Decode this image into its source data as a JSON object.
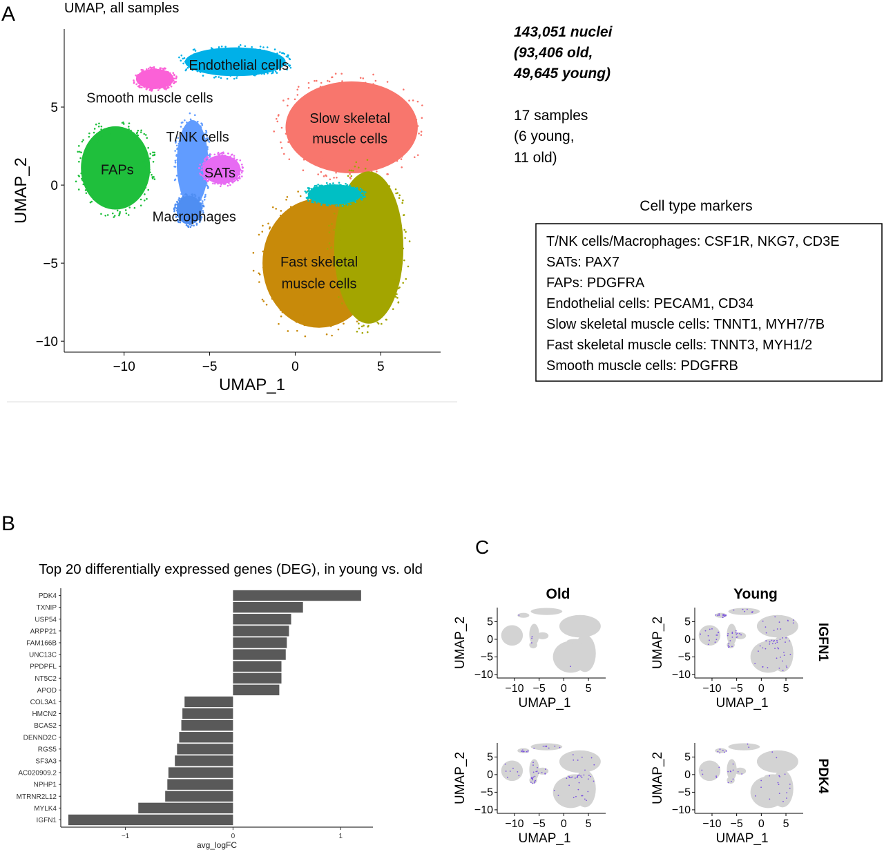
{
  "panels": {
    "A": {
      "letter": "A",
      "title": "UMAP, all samples",
      "nuclei_text": [
        "143,051 nuclei",
        "(93,406 old,",
        "49,645 young)"
      ],
      "samples_text": [
        "17 samples",
        "(6 young,",
        "11 old)"
      ],
      "markers_title": "Cell type markers",
      "markers": [
        "T/NK cells/Macrophages: CSF1R, NKG7, CD3E",
        "SATs: PAX7",
        "FAPs: PDGFRA",
        "Endothelial cells: PECAM1, CD34",
        "Slow skeletal muscle cells: TNNT1, MYH7/7B",
        "Fast skeletal muscle cells: TNNT3, MYH1/2",
        "Smooth muscle cells: PDGFRB"
      ]
    },
    "B": {
      "letter": "B"
    },
    "C": {
      "letter": "C",
      "col_labels": [
        "Old",
        "Young"
      ],
      "row_labels": [
        "IGFN1",
        "PDK4"
      ]
    }
  },
  "chart_data": [
    {
      "type": "scatter",
      "id": "umap-all",
      "xlabel": "UMAP_1",
      "ylabel": "UMAP_2",
      "xlim": [
        -13.5,
        8.5
      ],
      "ylim": [
        -10.7,
        10
      ],
      "xticks": [
        -10,
        -5,
        0,
        5
      ],
      "yticks": [
        -10,
        -5,
        0,
        5
      ],
      "tick_labels_x": [
        "−10",
        "−5",
        "0",
        "5"
      ],
      "tick_labels_y": [
        "−10",
        "−5",
        "0",
        "5"
      ],
      "grid": false,
      "clusters": [
        {
          "label": "Slow skeletal muscle cells",
          "color": "#f8766d",
          "center": [
            3.3,
            3.7
          ],
          "radius": [
            4.2,
            3.2
          ]
        },
        {
          "label": "Fast skeletal muscle cells",
          "color": "#c88a0a",
          "center": [
            1.4,
            -5.0
          ],
          "radius": [
            3.6,
            4.5
          ]
        },
        {
          "label": "",
          "color": "#a3a500",
          "center": [
            4.3,
            -4.0
          ],
          "radius": [
            2.2,
            5.3
          ]
        },
        {
          "label": "",
          "color": "#00bfc4",
          "center": [
            2.3,
            -0.6
          ],
          "radius": [
            1.7,
            0.7
          ]
        },
        {
          "label": "Endothelial cells",
          "color": "#00b0e8",
          "center": [
            -3.5,
            7.9
          ],
          "radius": [
            3.2,
            1.0
          ]
        },
        {
          "label": "Smooth muscle cells",
          "color": "#fb61d7",
          "center": [
            -8.2,
            6.8
          ],
          "radius": [
            1.2,
            0.7
          ]
        },
        {
          "label": "T/NK cells",
          "color": "#619cff",
          "center": [
            -6.0,
            1.4
          ],
          "radius": [
            1.0,
            3.0
          ]
        },
        {
          "label": "SATs",
          "color": "#e76bf3",
          "center": [
            -4.3,
            1.0
          ],
          "radius": [
            1.2,
            1.0
          ]
        },
        {
          "label": "Macrophages",
          "color": "#4f8ef2",
          "center": [
            -6.2,
            -1.6
          ],
          "radius": [
            0.8,
            1.0
          ]
        },
        {
          "label": "FAPs",
          "color": "#1fbf3c",
          "center": [
            -10.5,
            1.1
          ],
          "radius": [
            2.2,
            2.9
          ]
        }
      ]
    },
    {
      "type": "bar",
      "id": "deg-bar",
      "orientation": "horizontal",
      "title": "Top 20 differentially expressed genes (DEG), in young vs. old",
      "xlabel": "avg_logFC",
      "ylabel": "",
      "xlim": [
        -1.6,
        1.3
      ],
      "xticks": [
        -1,
        0,
        1
      ],
      "tick_labels_x": [
        "−1",
        "0",
        "1"
      ],
      "color": "#595959",
      "categories": [
        "PDK4",
        "TXNIP",
        "USP54",
        "ARPP21",
        "FAM166B",
        "UNC13C",
        "PPDPFL",
        "NT5C2",
        "APOD",
        "COL3A1",
        "HMCN2",
        "BCAS2",
        "DENND2C",
        "RGS5",
        "SF3A3",
        "AC020909.2",
        "NPHP1",
        "MTRNR2L12",
        "MYLK4",
        "IGFN1"
      ],
      "values": [
        1.19,
        0.65,
        0.54,
        0.52,
        0.5,
        0.49,
        0.45,
        0.45,
        0.43,
        -0.45,
        -0.47,
        -0.48,
        -0.5,
        -0.52,
        -0.54,
        -0.6,
        -0.61,
        -0.63,
        -0.88,
        -1.53
      ]
    },
    {
      "type": "scatter",
      "id": "feature-grid",
      "xlabel": "UMAP_1",
      "ylabel": "UMAP_2",
      "xticks": [
        -10,
        -5,
        0,
        5
      ],
      "yticks": [
        -10,
        -5,
        0,
        5
      ],
      "tick_labels_x": [
        "−10",
        "−5",
        "0",
        "5"
      ],
      "tick_labels_y": [
        "−10",
        "−5",
        "0",
        "5"
      ],
      "base_color": "#d3d3d3",
      "expr_color": "#7b52e0",
      "panels": [
        {
          "condition": "Old",
          "gene": "IGFN1",
          "density": 0.004
        },
        {
          "condition": "Young",
          "gene": "IGFN1",
          "density": 0.085
        },
        {
          "condition": "Old",
          "gene": "PDK4",
          "density": 0.07
        },
        {
          "condition": "Young",
          "gene": "PDK4",
          "density": 0.035
        }
      ]
    }
  ]
}
